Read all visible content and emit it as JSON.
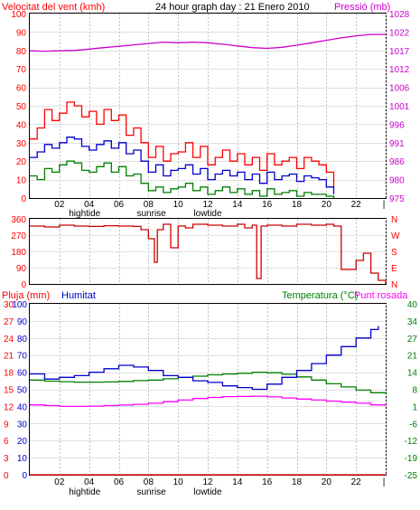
{
  "header": {
    "wind_title": "Velocitat del vent (kmh)",
    "graph_title": "24 hour graph day : 21 Enero 2010",
    "pressure_title": "Pressió (mb)"
  },
  "bottom_header": {
    "rain_title": "Pluja (mm)",
    "humidity_title": "Humitat",
    "temp_title": "Temperatura (°C)",
    "dew_title": "Punt rosada"
  },
  "time_axis": {
    "hour_labels": [
      "02",
      "04",
      "06",
      "08",
      "10",
      "12",
      "14",
      "16",
      "18",
      "20",
      "22",
      "|"
    ],
    "events": [
      {
        "label": "hightide",
        "hour": 3.7
      },
      {
        "label": "sunrise",
        "hour": 8.2
      },
      {
        "label": "lowtide",
        "hour": 12.0
      }
    ]
  },
  "colors": {
    "wind_gust": "#ff0000",
    "wind_avg": "#0000cc",
    "wind_min": "#008000",
    "pressure": "#cc00cc",
    "direction": "#cc0000",
    "humidity": "#0000cc",
    "temperature": "#008000",
    "dew_point": "#ff00ff",
    "rain": "#ff0000"
  },
  "chart_data": [
    {
      "type": "line",
      "name": "wind_pressure",
      "x_unit": "hour",
      "xlim": [
        0,
        24
      ],
      "left_axis": {
        "ticks": [
          "0",
          "10",
          "20",
          "30",
          "40",
          "50",
          "60",
          "70",
          "80",
          "90",
          "100"
        ],
        "ylim": [
          0,
          100
        ]
      },
      "right_axis": {
        "ticks": [
          "975",
          "980",
          "986",
          "991",
          "996",
          "1001",
          "1006",
          "1012",
          "1017",
          "1022",
          "1028"
        ],
        "ylim": [
          975,
          1028
        ]
      },
      "series": [
        {
          "key": "gust",
          "axis": "left",
          "x": [
            0,
            0.5,
            1,
            1.5,
            2,
            2.5,
            3,
            3.5,
            4,
            4.5,
            5,
            5.5,
            6,
            6.5,
            7,
            7.5,
            8,
            8.5,
            9,
            9.5,
            10,
            10.5,
            11,
            11.5,
            12,
            12.5,
            13,
            13.5,
            14,
            14.5,
            15,
            15.5,
            16,
            16.5,
            17,
            17.5,
            18,
            18.5,
            19,
            19.5,
            20,
            20.5
          ],
          "y": [
            32,
            38,
            48,
            42,
            46,
            52,
            50,
            44,
            47,
            40,
            48,
            42,
            45,
            34,
            38,
            30,
            22,
            28,
            20,
            24,
            25,
            30,
            22,
            28,
            18,
            22,
            26,
            20,
            24,
            18,
            22,
            15,
            24,
            18,
            20,
            22,
            16,
            22,
            20,
            18,
            14,
            6
          ]
        },
        {
          "key": "average",
          "axis": "left",
          "x": [
            0,
            0.5,
            1,
            1.5,
            2,
            2.5,
            3,
            3.5,
            4,
            4.5,
            5,
            5.5,
            6,
            6.5,
            7,
            7.5,
            8,
            8.5,
            9,
            9.5,
            10,
            10.5,
            11,
            11.5,
            12,
            12.5,
            13,
            13.5,
            14,
            14.5,
            15,
            15.5,
            16,
            16.5,
            17,
            17.5,
            18,
            18.5,
            19,
            19.5,
            20,
            20.5
          ],
          "y": [
            22,
            25,
            29,
            27,
            30,
            33,
            32,
            28,
            26,
            29,
            31,
            27,
            30,
            24,
            26,
            20,
            14,
            18,
            12,
            15,
            16,
            18,
            13,
            16,
            10,
            13,
            15,
            12,
            14,
            10,
            13,
            8,
            14,
            10,
            12,
            13,
            9,
            12,
            11,
            10,
            6,
            2
          ]
        },
        {
          "key": "minimum",
          "axis": "left",
          "x": [
            0,
            0.5,
            1,
            1.5,
            2,
            2.5,
            3,
            3.5,
            4,
            4.5,
            5,
            5.5,
            6,
            6.5,
            7,
            7.5,
            8,
            8.5,
            9,
            9.5,
            10,
            10.5,
            11,
            11.5,
            12,
            12.5,
            13,
            13.5,
            14,
            14.5,
            15,
            15.5,
            16,
            16.5,
            17,
            17.5,
            18,
            18.5,
            19,
            19.5,
            20,
            20.5
          ],
          "y": [
            12,
            10,
            16,
            14,
            18,
            20,
            19,
            15,
            14,
            17,
            19,
            14,
            17,
            12,
            13,
            8,
            4,
            6,
            3,
            5,
            6,
            8,
            4,
            6,
            2,
            4,
            6,
            3,
            5,
            2,
            4,
            1,
            5,
            2,
            3,
            4,
            1,
            3,
            2,
            2,
            1,
            0
          ]
        },
        {
          "key": "pressure",
          "axis": "right",
          "x": [
            0,
            1,
            2,
            3,
            4,
            5,
            6,
            7,
            8,
            9,
            10,
            11,
            12,
            13,
            14,
            15,
            16,
            17,
            18,
            19,
            20,
            21,
            22,
            23,
            24
          ],
          "y": [
            1017.3,
            1017.2,
            1017.3,
            1017.4,
            1017.8,
            1018.2,
            1018.6,
            1019.0,
            1019.4,
            1019.8,
            1019.6,
            1019.8,
            1019.6,
            1019.2,
            1018.7,
            1018.2,
            1018.0,
            1018.3,
            1018.9,
            1019.6,
            1020.3,
            1021.0,
            1021.6,
            1022.0,
            1022.0
          ]
        }
      ]
    },
    {
      "type": "line",
      "name": "wind_direction",
      "x_unit": "hour",
      "xlim": [
        0,
        24
      ],
      "y_ticks_left": [
        "0",
        "90",
        "180",
        "270",
        "360"
      ],
      "y_ticks_right": [
        "N",
        "E",
        "S",
        "W",
        "N"
      ],
      "ylim": [
        0,
        360
      ],
      "series": [
        {
          "key": "direction",
          "x": [
            0,
            1,
            2,
            3,
            4,
            5,
            6,
            7,
            7.5,
            8,
            8.4,
            8.6,
            9,
            9.5,
            10,
            10.5,
            11,
            12,
            13,
            14,
            14.5,
            15,
            15.3,
            15.6,
            16,
            17,
            18,
            19,
            20,
            20.5,
            21,
            22,
            22.5,
            23,
            23.5,
            24
          ],
          "y": [
            320,
            315,
            325,
            320,
            318,
            322,
            320,
            318,
            300,
            250,
            120,
            300,
            330,
            200,
            320,
            310,
            330,
            325,
            320,
            330,
            310,
            325,
            30,
            320,
            325,
            320,
            330,
            325,
            330,
            320,
            80,
            130,
            170,
            60,
            20,
            0
          ]
        }
      ]
    },
    {
      "type": "line",
      "name": "humidity_temperature",
      "x_unit": "hour",
      "xlim": [
        0,
        24
      ],
      "left_rain_axis": {
        "ticks": [
          "0",
          "3",
          "6",
          "9",
          "12",
          "15",
          "18",
          "21",
          "24",
          "27",
          "30"
        ],
        "ylim": [
          0,
          30
        ]
      },
      "left_humidity_axis": {
        "ticks": [
          "0",
          "10",
          "20",
          "30",
          "40",
          "50",
          "60",
          "70",
          "80",
          "90",
          "100"
        ],
        "ylim": [
          0,
          100
        ]
      },
      "right_temp_axis": {
        "ticks": [
          "-25",
          "-19",
          "-12",
          "-6",
          "1",
          "8",
          "14",
          "21",
          "27",
          "34",
          "40"
        ],
        "ylim": [
          -25,
          40
        ]
      },
      "series": [
        {
          "key": "humidity",
          "axis": "humidity",
          "x": [
            0,
            1,
            2,
            3,
            4,
            5,
            6,
            7,
            8,
            9,
            10,
            11,
            12,
            13,
            14,
            15,
            16,
            17,
            18,
            19,
            20,
            21,
            22,
            23,
            23.5
          ],
          "y": [
            59,
            56,
            57,
            58,
            60,
            62,
            64,
            63,
            61,
            58,
            57,
            55,
            54,
            52,
            51,
            50,
            53,
            57,
            61,
            65,
            70,
            75,
            80,
            85,
            87
          ]
        },
        {
          "key": "temperature",
          "axis": "temperature",
          "x": [
            0,
            1,
            2,
            3,
            4,
            5,
            6,
            7,
            8,
            9,
            10,
            11,
            12,
            13,
            14,
            15,
            16,
            17,
            18,
            19,
            20,
            21,
            22,
            23,
            24
          ],
          "y": [
            11,
            10.6,
            10.4,
            10.2,
            10.2,
            10.3,
            10.5,
            10.8,
            11,
            11.5,
            12,
            12.5,
            13,
            13.3,
            13.6,
            14,
            13.8,
            13.2,
            12.2,
            11,
            9.6,
            8.4,
            7.2,
            6.2,
            5.8
          ]
        },
        {
          "key": "dew_point",
          "axis": "temperature",
          "x": [
            0,
            1,
            2,
            3,
            4,
            5,
            6,
            7,
            8,
            9,
            10,
            11,
            12,
            13,
            14,
            15,
            16,
            17,
            18,
            19,
            20,
            21,
            22,
            23,
            24
          ],
          "y": [
            1.6,
            1.3,
            1.0,
            1.0,
            1.1,
            1.3,
            1.5,
            1.8,
            2.2,
            2.8,
            3.4,
            4.0,
            4.4,
            4.7,
            4.8,
            4.9,
            4.6,
            4.2,
            3.8,
            3.4,
            3.0,
            2.6,
            2.2,
            1.6,
            1.2
          ]
        },
        {
          "key": "rain",
          "axis": "rain",
          "x": [
            0,
            24
          ],
          "y": [
            0,
            0
          ]
        }
      ]
    }
  ]
}
